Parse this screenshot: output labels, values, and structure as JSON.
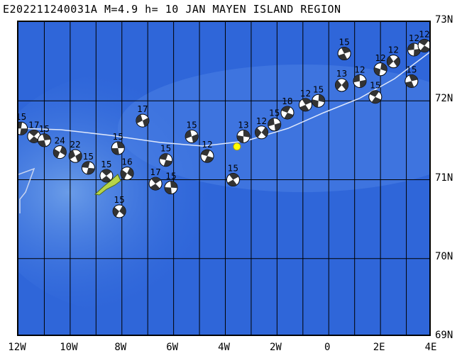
{
  "title": "E202211240031A M=4.9 h= 10 JAN MAYEN ISLAND REGION",
  "lat_labels": [
    "73N",
    "72N",
    "71N",
    "70N",
    "69N"
  ],
  "lon_labels": [
    "12W",
    "10W",
    "8W",
    "6W",
    "4W",
    "2W",
    "0",
    "2E",
    "4E"
  ],
  "colors": {
    "ocean_deep": "#2a5fd6",
    "ocean_mid": "#3b73e0",
    "ocean_shallow": "#6a9ce8",
    "land": "#b7d44a",
    "epicenter": "#ffff00",
    "grid": "#000000",
    "ridge": "#c8d4f0"
  },
  "mechanisms": [
    {
      "label": "15",
      "lat": 71.65,
      "lon": -11.9
    },
    {
      "label": "17",
      "lat": 71.55,
      "lon": -11.4
    },
    {
      "label": "15",
      "lat": 71.5,
      "lon": -11.0
    },
    {
      "label": "24",
      "lat": 71.35,
      "lon": -10.4
    },
    {
      "label": "22",
      "lat": 71.3,
      "lon": -9.8
    },
    {
      "label": "15",
      "lat": 71.15,
      "lon": -9.3
    },
    {
      "label": "15",
      "lat": 71.05,
      "lon": -8.6
    },
    {
      "label": "15",
      "lat": 71.4,
      "lon": -8.15
    },
    {
      "label": "16",
      "lat": 71.08,
      "lon": -7.8
    },
    {
      "label": "17",
      "lat": 71.75,
      "lon": -7.2
    },
    {
      "label": "15",
      "lat": 71.25,
      "lon": -6.3
    },
    {
      "label": "17",
      "lat": 70.95,
      "lon": -6.7
    },
    {
      "label": "15",
      "lat": 70.9,
      "lon": -6.1
    },
    {
      "label": "15",
      "lat": 70.6,
      "lon": -8.1
    },
    {
      "label": "15",
      "lat": 71.55,
      "lon": -5.3
    },
    {
      "label": "12",
      "lat": 71.3,
      "lon": -4.7
    },
    {
      "label": "15",
      "lat": 71.0,
      "lon": -3.7
    },
    {
      "label": "13",
      "lat": 71.55,
      "lon": -3.3
    },
    {
      "label": "12",
      "lat": 71.6,
      "lon": -2.6
    },
    {
      "label": "15",
      "lat": 71.7,
      "lon": -2.1
    },
    {
      "label": "18",
      "lat": 71.85,
      "lon": -1.6
    },
    {
      "label": "12",
      "lat": 71.95,
      "lon": -0.9
    },
    {
      "label": "15",
      "lat": 72.0,
      "lon": -0.4
    },
    {
      "label": "13",
      "lat": 72.2,
      "lon": 0.5
    },
    {
      "label": "12",
      "lat": 72.25,
      "lon": 1.2
    },
    {
      "label": "15",
      "lat": 72.05,
      "lon": 1.8
    },
    {
      "label": "15",
      "lat": 72.6,
      "lon": 0.6
    },
    {
      "label": "12",
      "lat": 72.4,
      "lon": 2.0
    },
    {
      "label": "12",
      "lat": 72.5,
      "lon": 2.5
    },
    {
      "label": "12",
      "lat": 72.65,
      "lon": 3.3
    },
    {
      "label": "12",
      "lat": 72.7,
      "lon": 3.7
    },
    {
      "label": "15",
      "lat": 72.25,
      "lon": 3.2
    }
  ],
  "epicenter": {
    "lat": 71.42,
    "lon": -3.55
  }
}
